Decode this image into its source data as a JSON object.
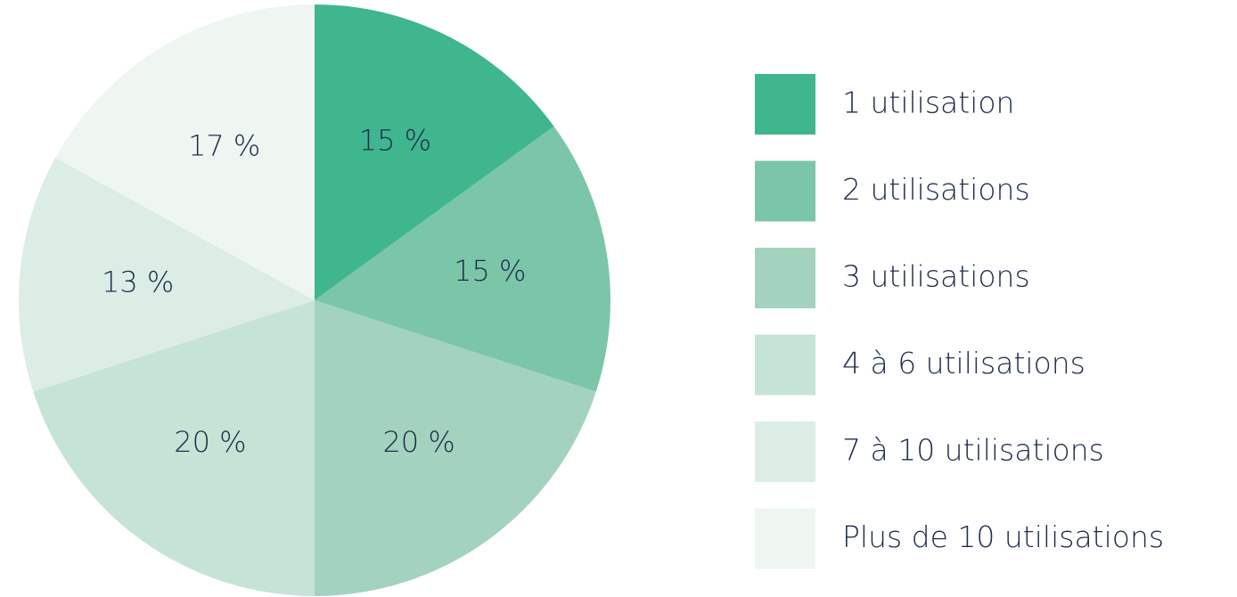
{
  "chart_data": {
    "type": "pie",
    "categories": [
      "1 utilisation",
      "2 utilisations",
      "3 utilisations",
      "4 à 6 utilisations",
      "7 à 10 utilisations",
      "Plus de 10 utilisations"
    ],
    "values": [
      15,
      15,
      20,
      20,
      13,
      17
    ],
    "value_labels": [
      "15 %",
      "15 %",
      "20 %",
      "20 %",
      "13 %",
      "17 %"
    ],
    "colors": [
      "#3fb68e",
      "#7bc6a8",
      "#a3d3be",
      "#c5e4d5",
      "#dbede5",
      "#eff6f2"
    ],
    "legend": "right"
  }
}
